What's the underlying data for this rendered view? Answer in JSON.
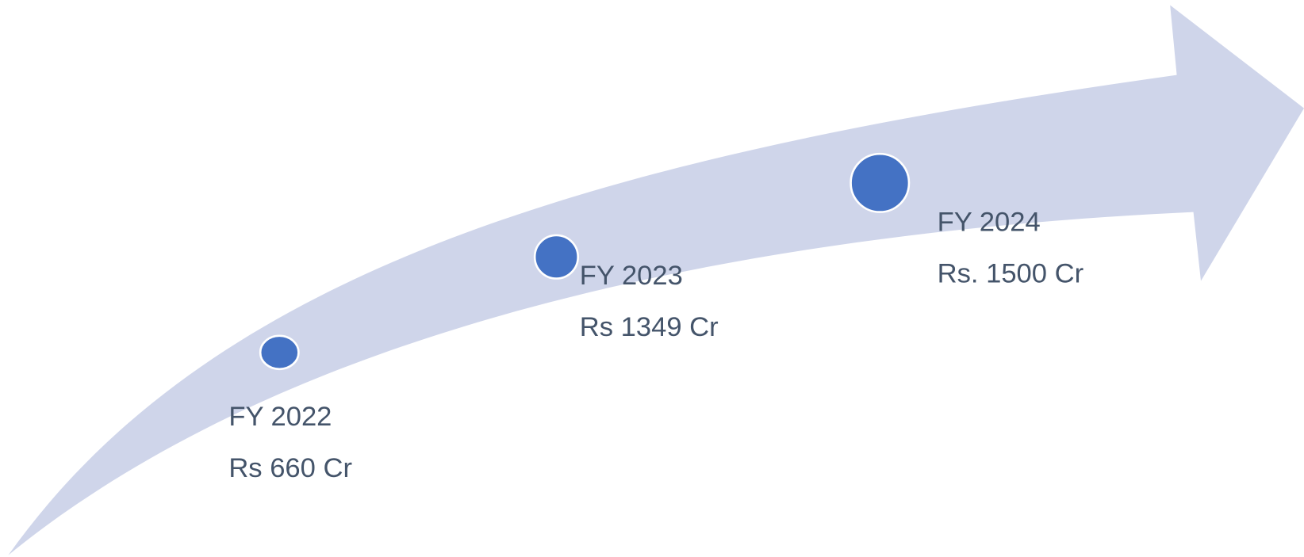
{
  "nodes": [
    {
      "label": "FY 2022",
      "value": "Rs 660 Cr"
    },
    {
      "label": "FY 2023",
      "value": "Rs 1349 Cr"
    },
    {
      "label": "FY 2024",
      "value": "Rs. 1500 Cr"
    }
  ]
}
